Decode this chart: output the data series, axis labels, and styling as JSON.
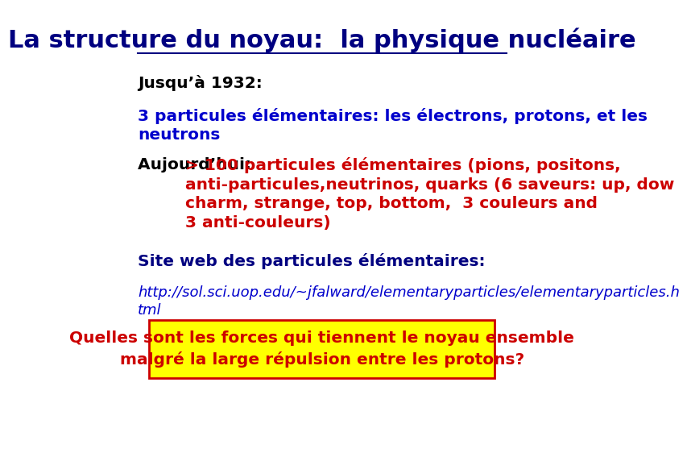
{
  "title": "La structure du noyau:  la physique nucléaire",
  "title_color": "#000080",
  "title_fontsize": 22,
  "background_color": "#ffffff",
  "line1": "Jusqu’à 1932:",
  "line1_color": "#000000",
  "line2": "3 particules élémentaires: les électrons, protons, et les\nneutrons",
  "line2_color": "#0000cc",
  "line3_part1": "Aujourd’hui: ",
  "line3_part1_color": "#000000",
  "line3_part2": "> 100 particules élémentaires (pions, positons,\nanti-particules,neutrinos, quarks (6 saveurs: up, dow\ncharm, strange, top, bottom,  3 couleurs and\n3 anti-couleurs)",
  "line3_part2_color": "#cc0000",
  "site_label": "Site web des particules élémentaires:",
  "site_label_color": "#000080",
  "link_text": "http://sol.sci.uop.edu/~jfalward/elementaryparticles/elementaryparticles.h\ntml",
  "link_color": "#0000cc",
  "box_text": "Quelles sont les forces qui tiennent le noyau ensemble\nmalgré la large répulsion entre les protons?",
  "box_text_color": "#cc0000",
  "box_bg_color": "#ffff00",
  "box_border_color": "#cc0000",
  "body_fontsize": 14.5,
  "small_fontsize": 13
}
